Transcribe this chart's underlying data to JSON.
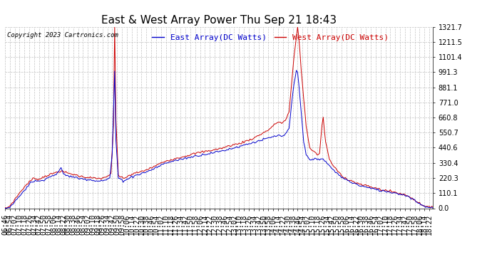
{
  "title": "East & West Array Power Thu Sep 21 18:43",
  "copyright": "Copyright 2023 Cartronics.com",
  "east_label": "East Array(DC Watts)",
  "west_label": "West Array(DC Watts)",
  "east_color": "#0000cc",
  "west_color": "#cc0000",
  "background_color": "#ffffff",
  "grid_color": "#bbbbbb",
  "yticks": [
    0.0,
    110.1,
    220.3,
    330.4,
    440.6,
    550.7,
    660.8,
    771.0,
    881.1,
    991.3,
    1101.4,
    1211.5,
    1321.7
  ],
  "ymax": 1321.7,
  "ymin": 0.0,
  "title_fontsize": 11,
  "label_fontsize": 8,
  "tick_fontsize": 7,
  "copyright_fontsize": 6.5,
  "xtick_interval": 4
}
